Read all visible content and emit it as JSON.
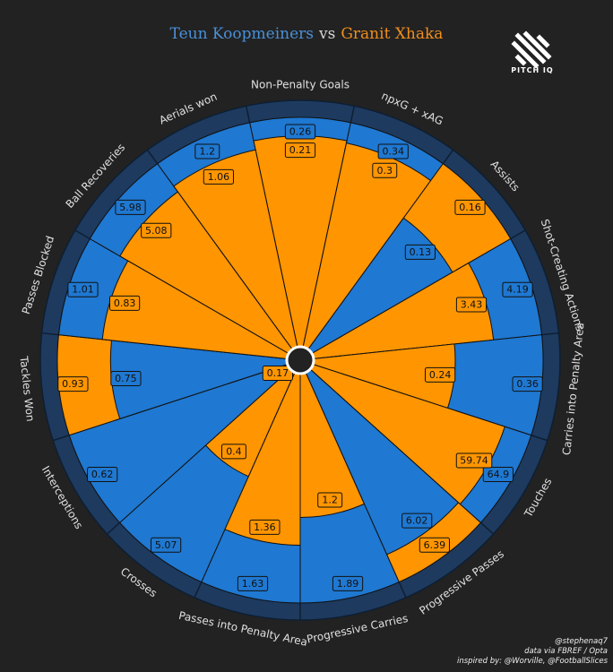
{
  "header": {
    "player1": "Teun Koopmeiners",
    "vs": "vs",
    "player2": "Granit Xhaka"
  },
  "logo": {
    "text": "PITCH IQ"
  },
  "credits": {
    "line1": "@stephenaq7",
    "line2": "data via FBREF / Opta",
    "line3": "inspired by: @Worville, @FootballSlices"
  },
  "colors": {
    "background": "#222222",
    "player1": "#1f78d1",
    "player2": "#ff9500",
    "ring": "#1e3a5f",
    "label_text": "#e0e0e0"
  },
  "chart_data": {
    "type": "radar",
    "chart_kind": "pizza/polar bar",
    "categories": [
      "Non-Penalty Goals",
      "npxG + xAG",
      "Assists",
      "Shot-Creating Actions",
      "Carries into Penalty Area",
      "Touches",
      "Progressive Passes",
      "Progressive Carries",
      "Passes into Penalty Area",
      "Crosses",
      "Interceptions",
      "Tackles Won",
      "Passes Blocked",
      "Ball Recoveries",
      "Aerials won"
    ],
    "series": [
      {
        "name": "Teun Koopmeiners",
        "values": [
          0.26,
          0.34,
          0.13,
          4.19,
          0.36,
          64.9,
          6.02,
          1.89,
          1.63,
          5.07,
          0.62,
          0.75,
          1.01,
          5.98,
          1.2
        ],
        "relative_length": [
          1.0,
          1.0,
          0.71,
          1.0,
          1.0,
          1.0,
          0.87,
          1.0,
          1.0,
          1.0,
          1.0,
          0.77,
          1.0,
          1.0,
          1.0
        ],
        "color": "#1f78d1"
      },
      {
        "name": "Granit Xhaka",
        "values": [
          0.21,
          0.3,
          0.16,
          3.43,
          0.24,
          59.74,
          6.39,
          1.2,
          1.36,
          0.4,
          0.17,
          0.93,
          0.83,
          5.08,
          1.06
        ],
        "relative_length": [
          0.92,
          0.91,
          1.0,
          0.79,
          0.62,
          0.88,
          1.0,
          0.63,
          0.75,
          0.5,
          0.0,
          1.0,
          0.81,
          0.85,
          0.88
        ],
        "color": "#ff9500"
      }
    ],
    "grid": false,
    "legend": "none"
  }
}
